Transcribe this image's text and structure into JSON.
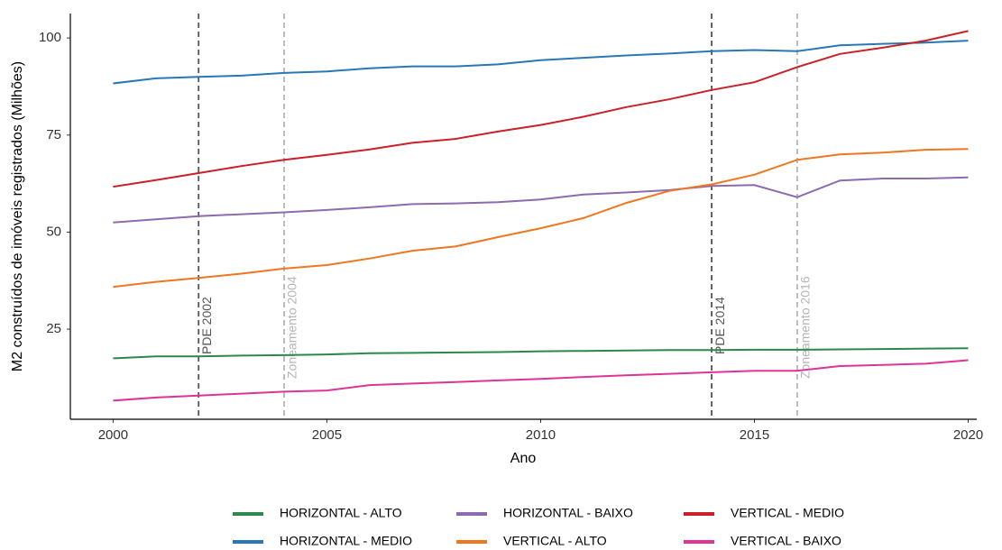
{
  "chart_data": {
    "type": "line",
    "x_label": "Ano",
    "y_label": "M2 construídos de imóveis registrados (Milhões)",
    "x": [
      2000,
      2001,
      2002,
      2003,
      2004,
      2005,
      2006,
      2007,
      2008,
      2009,
      2010,
      2011,
      2012,
      2013,
      2014,
      2015,
      2016,
      2017,
      2018,
      2019,
      2020
    ],
    "series": [
      {
        "name": "HORIZONTAL - ALTO",
        "color": "#2b8a4b",
        "values": [
          17.5,
          18,
          18,
          18.2,
          18.3,
          18.5,
          18.8,
          18.9,
          19,
          19.1,
          19.3,
          19.4,
          19.5,
          19.6,
          19.6,
          19.7,
          19.7,
          19.8,
          19.9,
          20,
          20.1
        ]
      },
      {
        "name": "HORIZONTAL - MEDIO",
        "color": "#2878b5",
        "values": [
          88.3,
          89.6,
          90,
          90.3,
          91,
          91.4,
          92.2,
          92.7,
          92.7,
          93.2,
          94.3,
          94.9,
          95.5,
          96,
          96.6,
          96.9,
          96.6,
          98.1,
          98.5,
          98.8,
          99.3
        ]
      },
      {
        "name": "HORIZONTAL - BAIXO",
        "color": "#8c6bb1",
        "values": [
          52.5,
          53.3,
          54.1,
          54.6,
          55.1,
          55.7,
          56.4,
          57.2,
          57.4,
          57.7,
          58.4,
          59.7,
          60.2,
          60.8,
          61.9,
          62.1,
          59,
          63.3,
          63.8,
          63.8,
          64.1
        ]
      },
      {
        "name": "VERTICAL - ALTO",
        "color": "#f07620",
        "values": [
          35.9,
          37.2,
          38.2,
          39.3,
          40.6,
          41.5,
          43.2,
          45.2,
          46.3,
          48.7,
          51,
          53.6,
          57.5,
          60.6,
          62.3,
          64.8,
          68.6,
          70,
          70.5,
          71.2,
          71.4
        ]
      },
      {
        "name": "VERTICAL - MEDIO",
        "color": "#cb2027",
        "values": [
          61.7,
          63.4,
          65.2,
          67,
          68.6,
          69.9,
          71.3,
          73,
          74,
          75.9,
          77.6,
          79.7,
          82.2,
          84.2,
          86.6,
          88.6,
          92.5,
          95.9,
          97.5,
          99.3,
          101.8
        ]
      },
      {
        "name": "VERTICAL - BAIXO",
        "color": "#dd3497",
        "values": [
          6.6,
          7.4,
          7.9,
          8.4,
          8.9,
          9.2,
          10.6,
          11,
          11.4,
          11.8,
          12.2,
          12.7,
          13.1,
          13.5,
          13.9,
          14.3,
          14.3,
          15.5,
          15.8,
          16.1,
          17
        ]
      }
    ],
    "vlines": [
      {
        "x": 2002,
        "label": "PDE 2002",
        "color": "#555555"
      },
      {
        "x": 2004,
        "label": "Zoneamento 2004",
        "color": "#b5b5b5"
      },
      {
        "x": 2014,
        "label": "PDE 2014",
        "color": "#555555"
      },
      {
        "x": 2016,
        "label": "Zoneamento 2016",
        "color": "#b5b5b5"
      }
    ],
    "xlim": [
      1999,
      2020.2
    ],
    "xticks": [
      2000,
      2005,
      2010,
      2015,
      2020
    ],
    "ylim": [
      1.8,
      106.3
    ],
    "yticks": [
      25,
      50,
      75,
      100
    ],
    "grid": false,
    "legend": "bottom"
  }
}
